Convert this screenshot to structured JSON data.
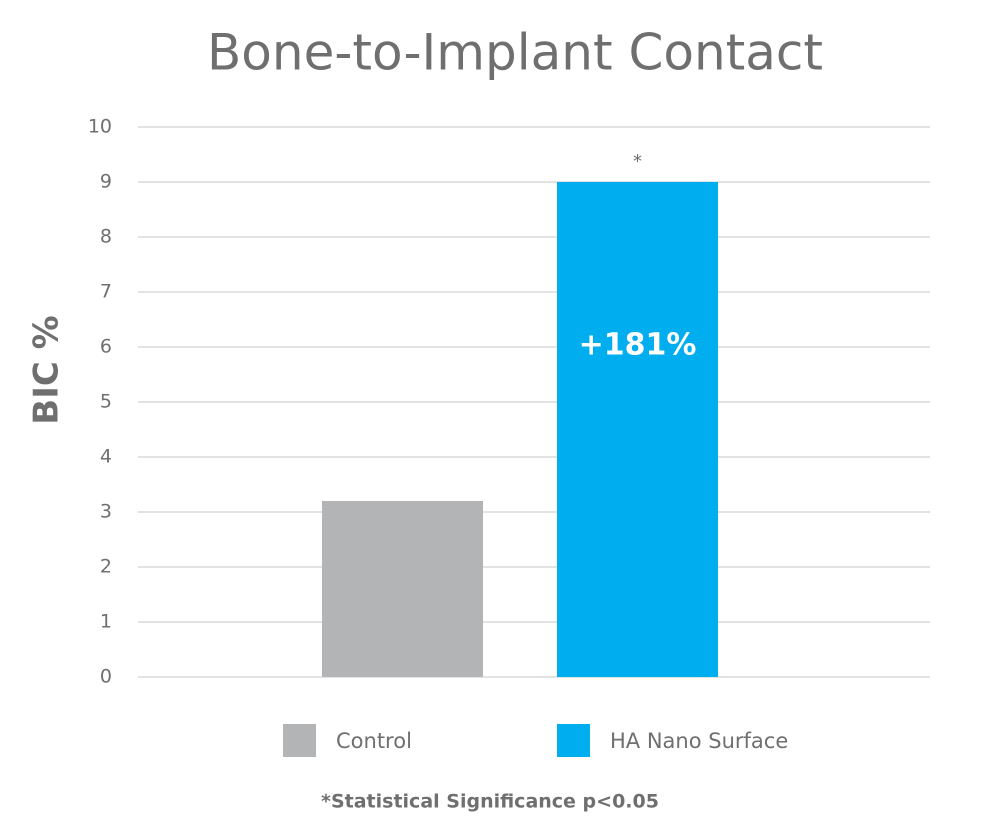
{
  "chart_data": {
    "type": "bar",
    "title": "Bone-to-Implant Contact",
    "y_label": "BIC %",
    "categories": [
      null
    ],
    "series": [
      {
        "name": "Control",
        "color": "#b3b4b6",
        "values": [
          3.2
        ]
      },
      {
        "name": "HA Nano Surface",
        "color": "#00adee",
        "values": [
          9
        ],
        "annotation": "*",
        "inner_label": "+181%"
      }
    ],
    "ylim": [
      0,
      10
    ],
    "yticks": [
      0,
      1,
      2,
      3,
      4,
      5,
      6,
      7,
      8,
      9,
      10
    ],
    "grid": true,
    "footnote": "*Statistical Significance p<0.05"
  }
}
